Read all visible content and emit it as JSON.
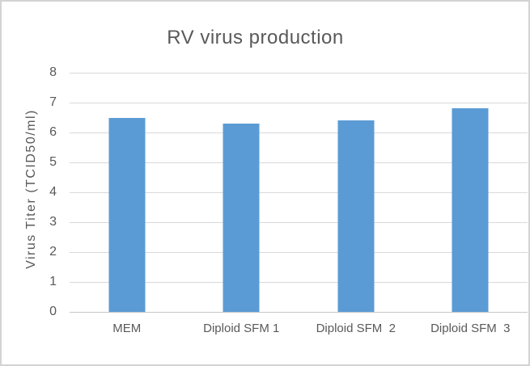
{
  "chart_data": {
    "type": "bar",
    "title": "RV virus production",
    "ylabel": "Virus Titer (TCID50/ml)",
    "xlabel": "",
    "categories": [
      "MEM",
      "Diploid SFM 1",
      "Diploid SFM  2",
      "Diploid SFM  3"
    ],
    "values": [
      6.5,
      6.3,
      6.4,
      6.8
    ],
    "ylim": [
      0,
      8
    ],
    "yticks": [
      0,
      1,
      2,
      3,
      4,
      5,
      6,
      7,
      8
    ],
    "grid": "horizontal",
    "legend": "none",
    "bar_color": "#5b9bd5",
    "gridline_color": "#d9d9d9",
    "axis_line_color": "#c6c6c6",
    "text_color": "#595959",
    "frame_border_color": "#d3d3d3",
    "background": "#ffffff"
  }
}
